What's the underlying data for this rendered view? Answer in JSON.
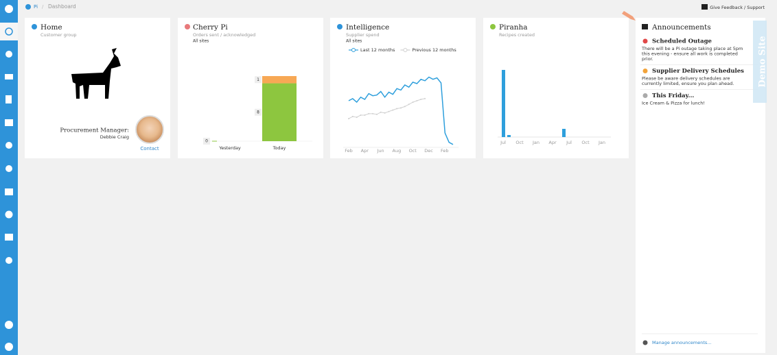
{
  "breadcrumb": [
    "Pi",
    "Dashboard"
  ],
  "feedback": "Give Feedback / Support",
  "demo": "Demo Site",
  "home": {
    "title": "Home",
    "subtitle": "Customer group",
    "role": "Procurement Manager:",
    "name": "Debbie Craig",
    "link": "Contact"
  },
  "cherry": {
    "title": "Cherry Pi",
    "subtitle": "Orders sent / acknowledged",
    "filter": "All sites",
    "chart": {
      "type": "bar",
      "categories": [
        "Yesterday",
        "Today"
      ],
      "ylim": [
        0,
        9
      ],
      "series": [
        {
          "color": "#8dc63f",
          "values": [
            0,
            8
          ]
        },
        {
          "color": "#f7a855",
          "values": [
            null,
            1
          ]
        }
      ]
    }
  },
  "intelligence": {
    "title": "Intelligence",
    "subtitle": "Supplier spend",
    "filter": "All sites",
    "chart": {
      "type": "line",
      "categories": [
        "Feb",
        "Apr",
        "Jun",
        "Aug",
        "Oct",
        "Dec",
        "Feb"
      ],
      "ylim": [
        0,
        110
      ],
      "series": [
        {
          "name": "Last 12 months",
          "color": "#2e9fdc",
          "values": [
            65,
            68,
            63,
            70,
            67,
            75,
            72,
            73,
            78,
            70,
            77,
            74,
            82,
            80,
            87,
            84,
            91,
            89,
            95,
            93,
            98,
            95,
            97,
            90,
            20,
            7,
            4
          ]
        },
        {
          "name": "Previous 12 months",
          "color": "#d0d0d0",
          "values": [
            40,
            43,
            42,
            45,
            45,
            47,
            47,
            46,
            49,
            48,
            50,
            52,
            54,
            55,
            57,
            60,
            63,
            65,
            67,
            68
          ]
        }
      ]
    }
  },
  "piranha": {
    "title": "Piranha",
    "subtitle": "Recipes created",
    "chart": {
      "type": "bar",
      "categories": [
        "Jul",
        "Oct",
        "Jan",
        "Apr",
        "Jul",
        "Oct",
        "Jan"
      ],
      "ylim": [
        0,
        100
      ],
      "color": "#2e9fdc",
      "values": [
        98,
        3,
        0,
        0,
        0,
        0,
        0,
        0,
        0,
        0,
        0,
        12,
        0,
        0,
        0,
        0,
        0,
        0,
        0
      ]
    }
  },
  "announcements": {
    "title": "Announcements",
    "manage": "Manage announcements...",
    "items": [
      {
        "icon": "#e04848",
        "title": "Scheduled Outage",
        "lines": [
          "There will be a Pi outage taking place at 5pm",
          "this evening - ensure all work is completed",
          "prior."
        ]
      },
      {
        "icon": "#f2a33a",
        "title": "Supplier Delivery Schedules",
        "lines": [
          "Please be aware delivery schedules are",
          "currently limited, ensure you plan ahead."
        ]
      },
      {
        "icon": "#aaaaaa",
        "title": "This Friday...",
        "lines": [
          "Ice Cream & Pizza for lunch!"
        ]
      }
    ]
  }
}
